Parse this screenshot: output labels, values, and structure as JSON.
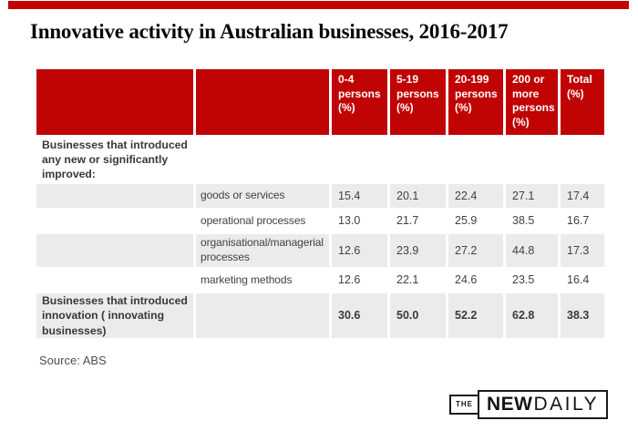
{
  "chart_data": {
    "type": "table",
    "title": "Innovative activity in Australian businesses, 2016-2017",
    "columns": [
      "",
      "",
      "0-4 persons (%)",
      "5-19 persons (%)",
      "20-199 persons (%)",
      "200 or more persons (%)",
      "Total (%)"
    ],
    "rows": [
      {
        "label": "Businesses that introduced any new or significantly improved:",
        "category": "",
        "values": [
          "",
          "",
          "",
          "",
          ""
        ]
      },
      {
        "label": "",
        "category": "goods or services",
        "values": [
          "15.4",
          "20.1",
          "22.4",
          "27.1",
          "17.4"
        ]
      },
      {
        "label": "",
        "category": "operational processes",
        "values": [
          "13.0",
          "21.7",
          "25.9",
          "38.5",
          "16.7"
        ]
      },
      {
        "label": "",
        "category": "organisational/managerial processes",
        "values": [
          "12.6",
          "23.9",
          "27.2",
          "44.8",
          "17.3"
        ]
      },
      {
        "label": "",
        "category": "marketing methods",
        "values": [
          "12.6",
          "22.1",
          "24.6",
          "23.5",
          "16.4"
        ]
      },
      {
        "label": "Businesses that introduced innovation ( innovating businesses)",
        "category": "",
        "values": [
          "30.6",
          "50.0",
          "52.2",
          "62.8",
          "38.3"
        ]
      }
    ],
    "source_note": "Source: ABS",
    "legend_position": "none",
    "grid": false
  },
  "branding": {
    "colors": {
      "brand_red": "#c00404",
      "header_red": "#c00404",
      "row_gray": "#ebebeb"
    },
    "logo": {
      "the": "THE",
      "new": "NEW",
      "daily": "DAILY"
    }
  }
}
